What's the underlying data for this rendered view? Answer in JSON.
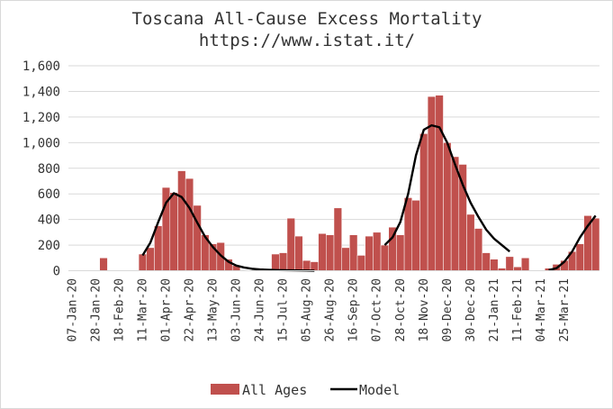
{
  "chart_data": {
    "type": "bar",
    "title": "Toscana All-Cause Excess Mortality",
    "subtitle": "https://www.istat.it/",
    "xlabel": "",
    "ylabel": "",
    "ylim": [
      0,
      1600
    ],
    "yticks": [
      0,
      200,
      400,
      600,
      800,
      1000,
      1200,
      1400,
      1600
    ],
    "ytick_labels": [
      "0",
      "200",
      "400",
      "600",
      "800",
      "1,000",
      "1,200",
      "1,400",
      "1,600"
    ],
    "grid": true,
    "legend_position": "bottom",
    "x_tick_labels": [
      "07-Jan-20",
      "28-Jan-20",
      "18-Feb-20",
      "11-Mar-20",
      "01-Apr-20",
      "22-Apr-20",
      "13-May-20",
      "03-Jun-20",
      "24-Jun-20",
      "15-Jul-20",
      "05-Aug-20",
      "26-Aug-20",
      "16-Sep-20",
      "07-Oct-20",
      "28-Oct-20",
      "18-Nov-20",
      "09-Dec-20",
      "30-Dec-20",
      "21-Jan-21",
      "11-Feb-21",
      "04-Mar-21",
      "25-Mar-21"
    ],
    "series": [
      {
        "name": "All Ages",
        "type": "bar",
        "color": "#c0504d",
        "values": [
          0,
          0,
          0,
          0,
          100,
          0,
          0,
          0,
          0,
          130,
          180,
          350,
          650,
          610,
          780,
          720,
          510,
          280,
          210,
          220,
          90,
          40,
          0,
          0,
          20,
          0,
          130,
          140,
          410,
          270,
          80,
          70,
          290,
          280,
          490,
          180,
          280,
          120,
          270,
          300,
          200,
          340,
          280,
          570,
          550,
          1070,
          1360,
          1370,
          1000,
          890,
          830,
          440,
          330,
          140,
          90,
          20,
          110,
          30,
          100,
          0,
          0,
          20,
          50,
          80,
          150,
          210,
          430,
          410
        ]
      },
      {
        "name": "Model",
        "type": "line",
        "color": "#000000",
        "values": [
          null,
          null,
          null,
          null,
          null,
          null,
          null,
          null,
          null,
          120,
          220,
          380,
          530,
          605,
          575,
          490,
          375,
          265,
          185,
          120,
          70,
          40,
          25,
          15,
          10,
          7,
          5,
          4,
          3,
          2,
          1,
          0,
          null,
          null,
          null,
          null,
          null,
          null,
          null,
          null,
          200,
          260,
          380,
          600,
          900,
          1100,
          1135,
          1120,
          1000,
          830,
          670,
          530,
          420,
          320,
          250,
          200,
          150,
          null,
          null,
          null,
          null,
          5,
          20,
          70,
          150,
          260,
          350,
          430
        ]
      }
    ]
  },
  "legend": {
    "bar_label": "All Ages",
    "line_label": "Model"
  }
}
